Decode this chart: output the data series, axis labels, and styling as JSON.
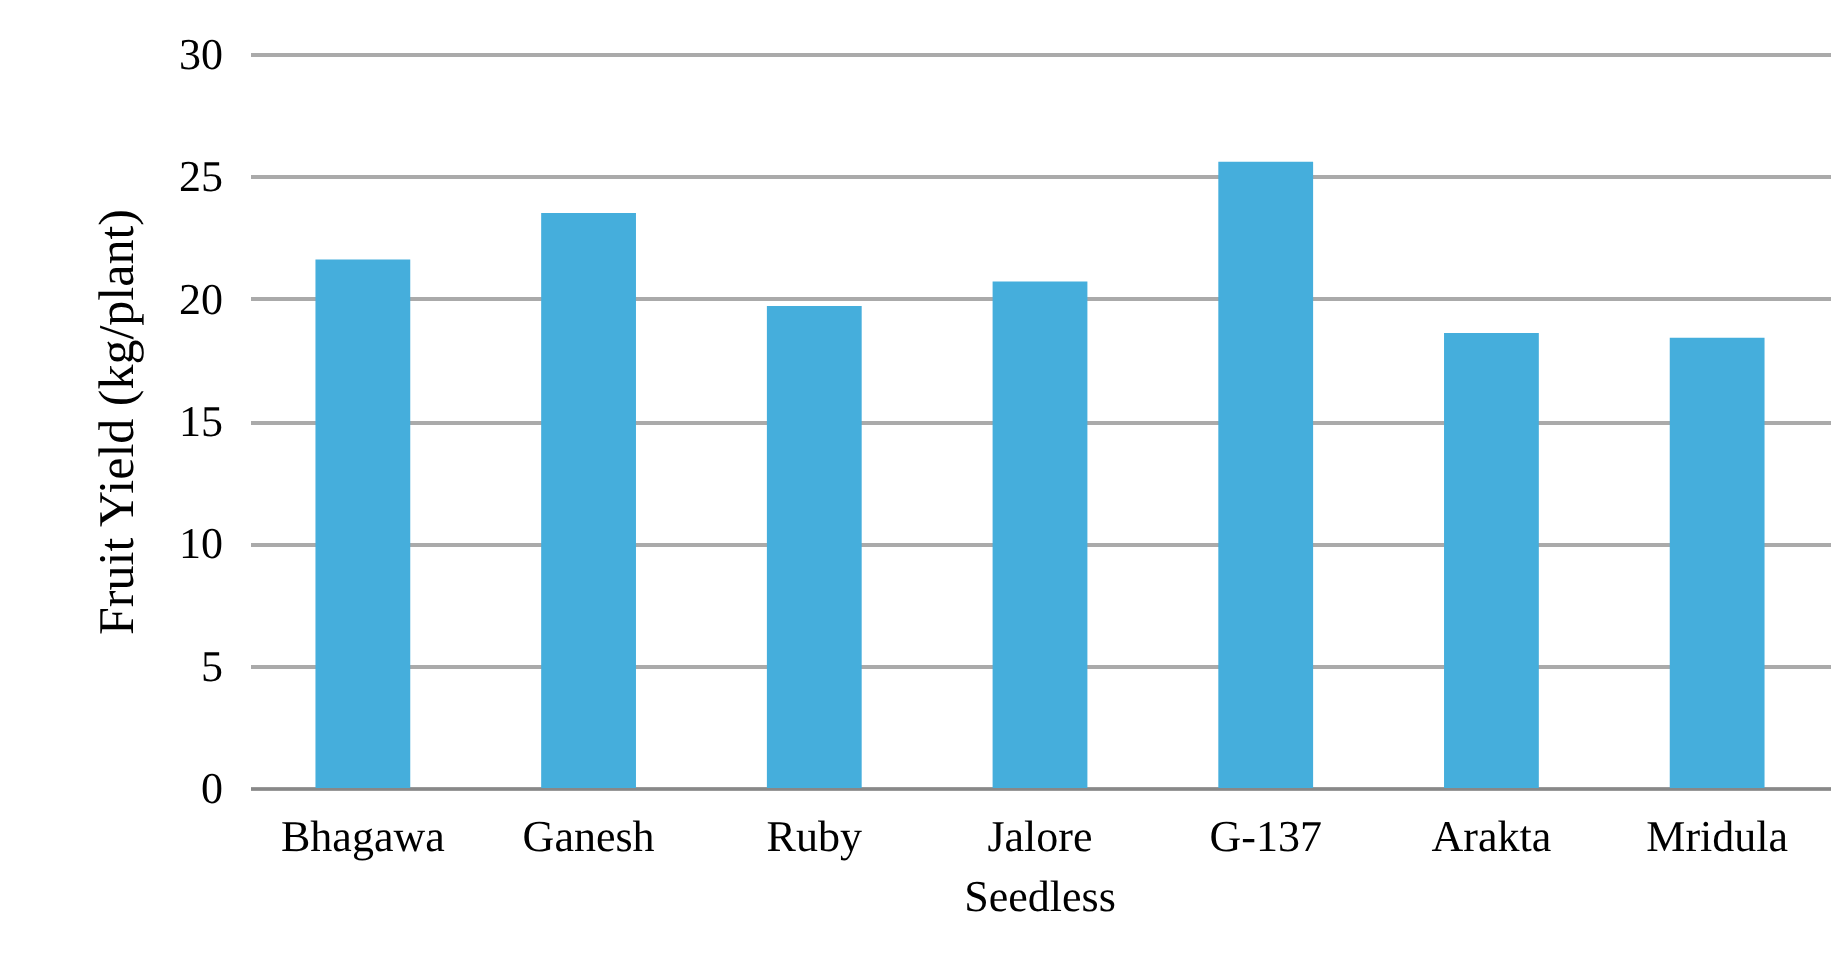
{
  "chart_data": {
    "type": "bar",
    "ylabel": "Fruit Yield (kg/plant)",
    "categories": [
      "Bhagawa",
      "Ganesh",
      "Ruby",
      "Jalore Seedless",
      "G-137",
      "Arakta",
      "Mridula"
    ],
    "values": [
      21.6,
      23.5,
      19.7,
      20.7,
      25.6,
      18.6,
      18.4
    ],
    "color": "#45aedc",
    "ylim": [
      0,
      30
    ],
    "yticks": [
      0,
      5,
      10,
      15,
      20,
      25,
      30
    ],
    "grid": "y"
  }
}
